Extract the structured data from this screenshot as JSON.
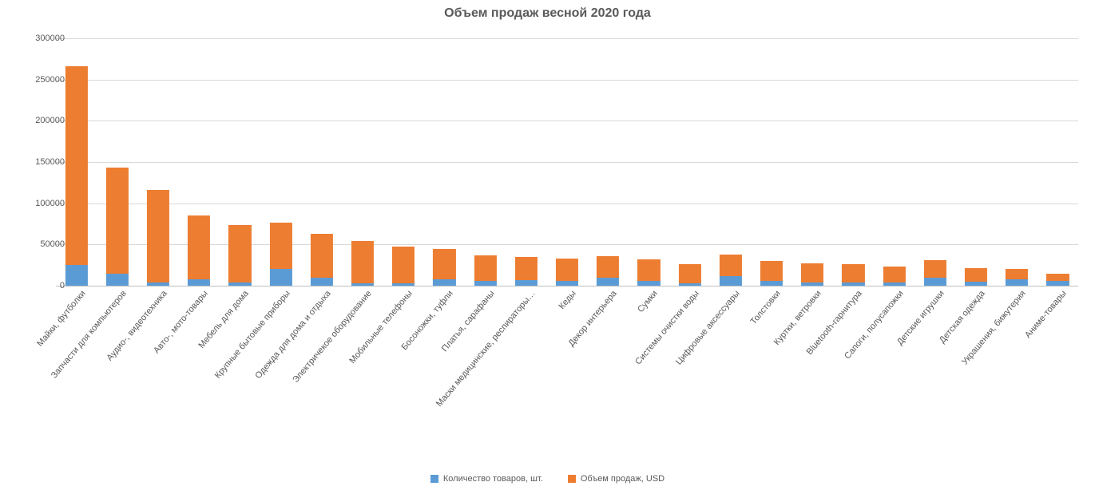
{
  "chart": {
    "type": "stacked-bar",
    "title": "Объем продаж весной 2020 года",
    "title_fontsize": 16,
    "title_color": "#595959",
    "background_color": "#ffffff",
    "grid_color": "#d9d9d9",
    "axis_color": "#bfbfbf",
    "label_color": "#595959",
    "label_fontsize": 11,
    "ylim": [
      0,
      300000
    ],
    "ytick_step": 50000,
    "yticks": [
      0,
      50000,
      100000,
      150000,
      200000,
      250000,
      300000
    ],
    "bar_width_ratio": 0.55,
    "xlabel_rotation_deg": -50,
    "series": [
      {
        "key": "qty",
        "label": "Количество товаров, шт.",
        "color": "#5b9bd5"
      },
      {
        "key": "sales",
        "label": "Объем продаж, USD",
        "color": "#ed7d31"
      }
    ],
    "categories": [
      "Майки, футболки",
      "Запчасти для компьютеров",
      "Аудио-, видеотехника",
      "Авто-, мото-товары",
      "Мебель для дома",
      "Крупные бытовые приборы",
      "Одежда для дома и отдыха",
      "Электричекое оборудование",
      "Мобильные телефоны",
      "Босоножки, туфли",
      "Платья, сарафаны",
      "Маски медицинские, респираторы…",
      "Кеды",
      "Декор интерьера",
      "Сумки",
      "Системы очистки воды",
      "Цифровые аксессуары",
      "Толстовки",
      "Куртки, ветровки",
      "Bluetooth-гарнитура",
      "Сапоги, полусапожки",
      "Детские игрушки",
      "Детская одежда",
      "Украшения, бижутерия",
      "Аниме-товары"
    ],
    "data": {
      "qty": [
        25000,
        15000,
        4000,
        8000,
        4000,
        20000,
        10000,
        3000,
        3000,
        8000,
        6000,
        7000,
        6000,
        10000,
        6000,
        3000,
        12000,
        6000,
        4000,
        4000,
        4000,
        10000,
        5000,
        8000,
        6000
      ],
      "sales": [
        241000,
        128000,
        112000,
        77000,
        70000,
        56000,
        53000,
        51000,
        44000,
        37000,
        31000,
        28000,
        27000,
        26000,
        26000,
        23000,
        26000,
        24000,
        23000,
        22000,
        19000,
        21000,
        16000,
        12000,
        9000
      ]
    },
    "legend_position": "bottom"
  }
}
